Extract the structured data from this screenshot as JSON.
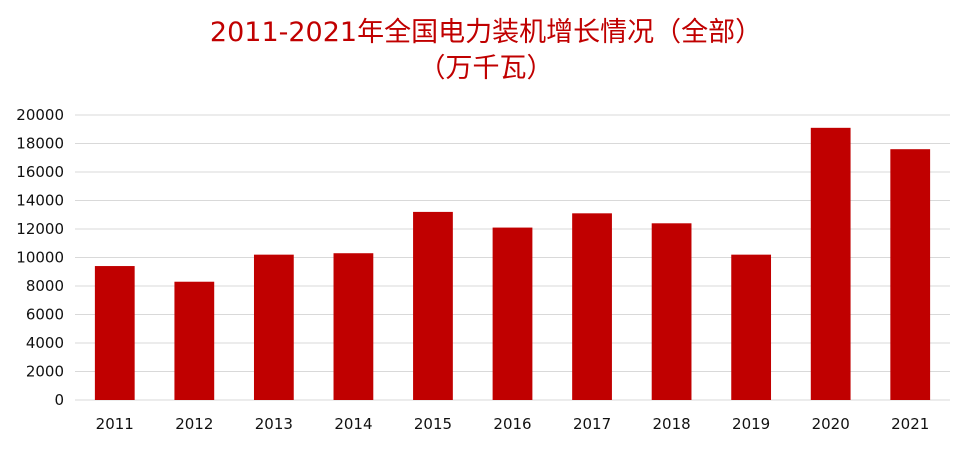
{
  "chart_data": {
    "type": "bar",
    "title": "2011-2021年全国电力装机增长情况（全部）",
    "subtitle": "（万千瓦）",
    "xlabel": "",
    "ylabel": "",
    "categories": [
      "2011",
      "2012",
      "2013",
      "2014",
      "2015",
      "2016",
      "2017",
      "2018",
      "2019",
      "2020",
      "2021"
    ],
    "series": [
      {
        "values": [
          9400,
          8300,
          10200,
          10300,
          13200,
          12100,
          13100,
          12400,
          10200,
          19100,
          17600
        ]
      }
    ],
    "ylim": [
      0,
      20000
    ],
    "yticks": [
      0,
      2000,
      4000,
      6000,
      8000,
      10000,
      12000,
      14000,
      16000,
      18000,
      20000
    ],
    "grid": true,
    "legend": "none",
    "bar_color": "#c00000",
    "grid_color": "#d9d9d9"
  }
}
